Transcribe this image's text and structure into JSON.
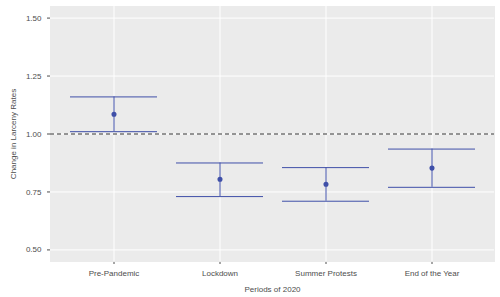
{
  "chart_data": {
    "type": "errorbar",
    "xlabel": "Periods of 2020",
    "ylabel": "Change in Larceny Rates",
    "categories": [
      "Pre-Pandemic",
      "Lockdown",
      "Summer Protests",
      "End of the Year"
    ],
    "values": [
      1.085,
      0.805,
      0.783,
      0.853
    ],
    "lower": [
      1.01,
      0.73,
      0.71,
      0.77
    ],
    "upper": [
      1.16,
      0.875,
      0.855,
      0.935
    ],
    "color": "#3f4fa8",
    "marker": "circle",
    "ylim": [
      0.45,
      1.55
    ],
    "yticks": [
      {
        "value": 0.5,
        "label": "0.50"
      },
      {
        "value": 0.75,
        "label": "0.75"
      },
      {
        "value": 1,
        "label": "1.00"
      },
      {
        "value": 1.25,
        "label": "1.25"
      },
      {
        "value": 1.5,
        "label": "1.50"
      }
    ],
    "reference_line": 1,
    "grid": true
  }
}
